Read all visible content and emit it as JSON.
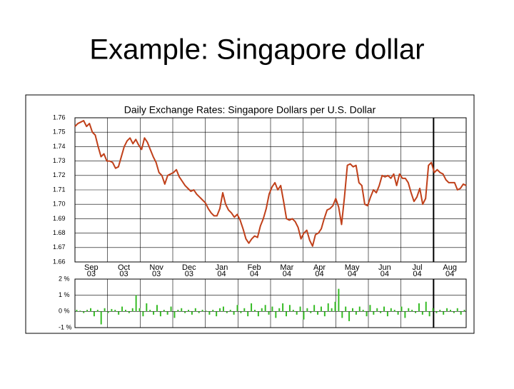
{
  "title": "Example:  Singapore dollar",
  "chart_data": [
    {
      "type": "line",
      "title": "Daily Exchange Rates: Singapore Dollars per U.S. Dollar",
      "months": [
        {
          "month": "Sep",
          "year": "03"
        },
        {
          "month": "Oct",
          "year": "03"
        },
        {
          "month": "Nov",
          "year": "03"
        },
        {
          "month": "Dec",
          "year": "03"
        },
        {
          "month": "Jan",
          "year": "04"
        },
        {
          "month": "Feb",
          "year": "04"
        },
        {
          "month": "Mar",
          "year": "04"
        },
        {
          "month": "Apr",
          "year": "04"
        },
        {
          "month": "May",
          "year": "04"
        },
        {
          "month": "Jun",
          "year": "04"
        },
        {
          "month": "Jul",
          "year": "04"
        },
        {
          "month": "Aug",
          "year": "04"
        }
      ],
      "series": [
        {
          "color": "#c0401a",
          "values": [
            1.754,
            1.756,
            1.757,
            1.758,
            1.754,
            1.756,
            1.75,
            1.748,
            1.74,
            1.733,
            1.735,
            1.73,
            1.73,
            1.729,
            1.725,
            1.726,
            1.733,
            1.74,
            1.744,
            1.746,
            1.742,
            1.745,
            1.741,
            1.738,
            1.746,
            1.743,
            1.738,
            1.733,
            1.729,
            1.722,
            1.72,
            1.714,
            1.72,
            1.721,
            1.722,
            1.724,
            1.719,
            1.716,
            1.713,
            1.711,
            1.709,
            1.71,
            1.707,
            1.705,
            1.703,
            1.701,
            1.697,
            1.694,
            1.692,
            1.692,
            1.697,
            1.708,
            1.7,
            1.696,
            1.694,
            1.691,
            1.693,
            1.689,
            1.683,
            1.676,
            1.673,
            1.676,
            1.678,
            1.677,
            1.685,
            1.69,
            1.697,
            1.707,
            1.712,
            1.715,
            1.71,
            1.713,
            1.702,
            1.69,
            1.689,
            1.69,
            1.688,
            1.684,
            1.676,
            1.68,
            1.682,
            1.675,
            1.671,
            1.679,
            1.68,
            1.683,
            1.69,
            1.696,
            1.697,
            1.699,
            1.704,
            1.698,
            1.686,
            1.705,
            1.727,
            1.728,
            1.726,
            1.727,
            1.715,
            1.713,
            1.7,
            1.699,
            1.705,
            1.71,
            1.708,
            1.713,
            1.72,
            1.719,
            1.72,
            1.718,
            1.721,
            1.713,
            1.721,
            1.718,
            1.718,
            1.715,
            1.708,
            1.702,
            1.705,
            1.711,
            1.7,
            1.704,
            1.727,
            1.729,
            1.722,
            1.724,
            1.722,
            1.721,
            1.717,
            1.715,
            1.715,
            1.715,
            1.71,
            1.711,
            1.714,
            1.713
          ]
        }
      ],
      "ylim": [
        1.66,
        1.76
      ],
      "yticks": [
        {
          "value": 1.66,
          "label": "1.66"
        },
        {
          "value": 1.67,
          "label": "1.67"
        },
        {
          "value": 1.68,
          "label": "1.68"
        },
        {
          "value": 1.69,
          "label": "1.69"
        },
        {
          "value": 1.7,
          "label": "1.70"
        },
        {
          "value": 1.71,
          "label": "1.71"
        },
        {
          "value": 1.72,
          "label": "1.72"
        },
        {
          "value": 1.73,
          "label": "1.73"
        },
        {
          "value": 1.74,
          "label": "1.74"
        },
        {
          "value": 1.75,
          "label": "1.75"
        },
        {
          "value": 1.76,
          "label": "1.76"
        }
      ],
      "grid": true
    },
    {
      "type": "bar",
      "color": "#33bb22",
      "values": [
        0.1,
        0.05,
        -0.1,
        0.1,
        0.2,
        -0.3,
        0.1,
        -0.8,
        0.2,
        -0.1,
        0.15,
        0.1,
        -0.2,
        0.3,
        0.1,
        -0.1,
        0.2,
        1.0,
        0.2,
        -0.3,
        0.5,
        0.1,
        -0.2,
        0.4,
        -0.3,
        0.1,
        -0.2,
        0.3,
        -0.4,
        0.1,
        0.2,
        -0.1,
        0.1,
        -0.2,
        0.2,
        -0.1,
        0.1,
        0.05,
        -0.2,
        0.1,
        -0.3,
        0.2,
        0.3,
        -0.1,
        0.1,
        -0.2,
        0.4,
        -0.1,
        0.2,
        -0.3,
        0.5,
        0.1,
        -0.3,
        0.2,
        0.4,
        -0.2,
        0.3,
        -0.4,
        0.2,
        0.5,
        -0.3,
        0.4,
        0.1,
        -0.2,
        0.3,
        -0.5,
        0.2,
        -0.1,
        0.4,
        -0.2,
        0.3,
        -0.3,
        0.5,
        0.2,
        0.6,
        1.4,
        -0.4,
        0.3,
        -0.6,
        0.2,
        -0.2,
        0.3,
        0.1,
        -0.3,
        0.4,
        -0.2,
        0.2,
        -0.1,
        0.3,
        -0.3,
        0.2,
        0.1,
        -0.2,
        0.3,
        -0.4,
        0.2,
        0.1,
        -0.1,
        0.5,
        -0.2,
        0.6,
        -0.3,
        0.2,
        -0.1,
        0.1,
        -0.2,
        0.2,
        0.1,
        -0.1,
        0.2,
        -0.2,
        0.1
      ],
      "ylim": [
        -1,
        2
      ],
      "yticks": [
        {
          "value": 2,
          "label": "2 %"
        },
        {
          "value": 1,
          "label": "1 %"
        },
        {
          "value": 0,
          "label": "0 %"
        },
        {
          "value": -1,
          "label": "-1 %"
        }
      ],
      "grid": true
    }
  ]
}
